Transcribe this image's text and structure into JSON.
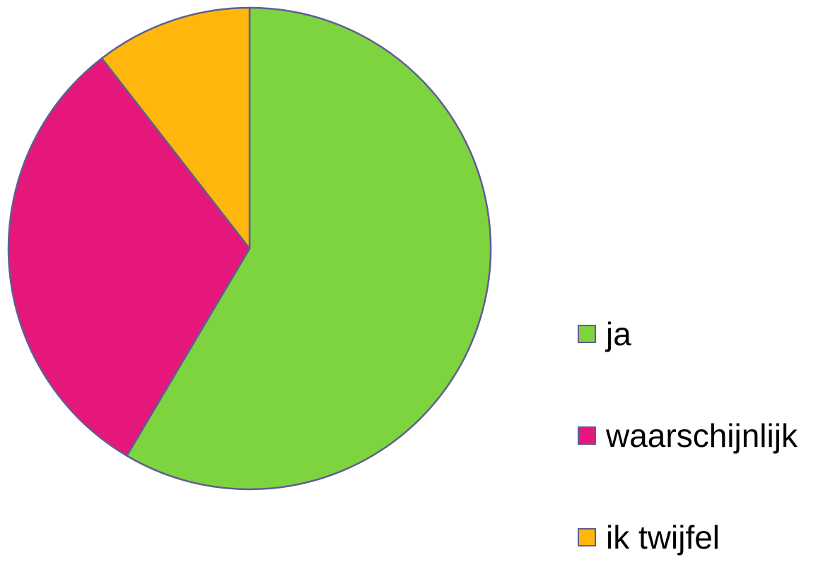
{
  "chart_data": {
    "type": "pie",
    "categories": [
      "ja",
      "waarschijnlijk",
      "ik twijfel"
    ],
    "values": [
      58.5,
      31,
      10.5
    ],
    "colors": [
      "#7ED43F",
      "#E6177A",
      "#FFB60D"
    ],
    "start_angle_deg": 0,
    "direction": "clockwise",
    "stroke_color": "#5E5E94",
    "legend_position": "right-bottom",
    "title": ""
  }
}
